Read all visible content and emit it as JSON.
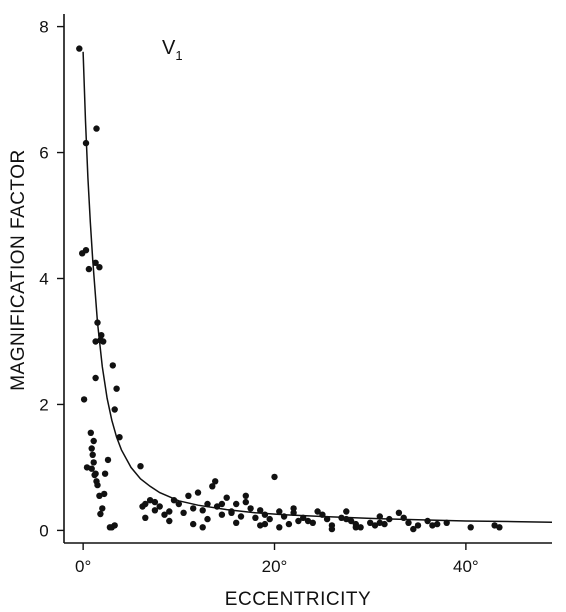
{
  "chart_data": {
    "type": "scatter",
    "panel_label": "V",
    "panel_label_sub": "1",
    "xlabel": "ECCENTRICITY",
    "ylabel": "MAGNIFICATION FACTOR",
    "xlim": [
      -2,
      49
    ],
    "ylim": [
      -0.2,
      8.2
    ],
    "x_ticks": [
      0,
      20,
      40
    ],
    "x_tick_labels": [
      "0°",
      "20°",
      "40°"
    ],
    "y_ticks": [
      0,
      2,
      4,
      6,
      8
    ],
    "y_tick_labels": [
      "0",
      "2",
      "4",
      "6",
      "8"
    ],
    "grid": false,
    "legend": "none",
    "colors": {
      "points": "#111111",
      "curve": "#111111",
      "background": "#ffffff"
    },
    "fit_curve": {
      "x": [
        0,
        0.25,
        0.5,
        0.75,
        1,
        1.25,
        1.5,
        2,
        2.5,
        3,
        3.5,
        4,
        5,
        6,
        7,
        8,
        10,
        12,
        15,
        18,
        21,
        25,
        30,
        35,
        40,
        45,
        50
      ],
      "y": [
        7.6,
        6.5,
        5.6,
        4.9,
        4.3,
        3.8,
        3.3,
        2.6,
        2.1,
        1.75,
        1.48,
        1.28,
        1.0,
        0.82,
        0.7,
        0.6,
        0.47,
        0.4,
        0.33,
        0.28,
        0.25,
        0.22,
        0.19,
        0.17,
        0.15,
        0.14,
        0.13
      ]
    },
    "points": {
      "x": [
        -0.4,
        0.3,
        -0.1,
        0.3,
        0.6,
        1.4,
        1.3,
        1.7,
        1.5,
        1.3,
        1.9,
        1.8,
        2.1,
        1.3,
        3.1,
        3.5,
        3.3,
        3.8,
        0.1,
        0.4,
        0.9,
        1.0,
        1.1,
        1.2,
        1.3,
        1.5,
        1.7,
        2.0,
        2.3,
        2.6,
        3.0,
        3.3,
        0.8,
        0.9,
        1.1,
        1.4,
        1.8,
        2.2,
        2.8,
        6.0,
        6.2,
        6.5,
        7.0,
        7.5,
        8.0,
        8.5,
        9.0,
        9.5,
        10.0,
        10.5,
        11.0,
        11.5,
        12.0,
        12.5,
        13.0,
        13.5,
        13.8,
        14.0,
        14.5,
        15.0,
        15.5,
        16.0,
        16.5,
        17.0,
        17.5,
        18.0,
        18.5,
        19.0,
        19.5,
        20.0,
        20.5,
        21.0,
        21.5,
        22.0,
        22.5,
        23.0,
        24.0,
        25.0,
        25.5,
        26.0,
        27.0,
        27.5,
        28.0,
        28.5,
        29.0,
        30.0,
        31.0,
        31.5,
        32.0,
        33.0,
        34.0,
        35.0,
        36.0,
        37.0,
        38.0,
        40.5,
        43.0,
        43.5,
        6.5,
        9.0,
        11.5,
        12.5,
        14.5,
        16.0,
        17.0,
        18.5,
        20.5,
        22.0,
        24.5,
        26.0,
        28.5,
        30.5,
        33.5,
        36.5,
        15.5,
        19.0,
        23.5,
        27.5,
        31.0,
        34.5,
        7.5,
        13.0
      ],
      "y": [
        7.65,
        6.15,
        4.4,
        4.45,
        4.15,
        6.38,
        4.25,
        4.18,
        3.3,
        3.0,
        3.1,
        3.02,
        3.0,
        2.42,
        2.62,
        2.25,
        1.92,
        1.48,
        2.08,
        1.0,
        1.3,
        1.2,
        1.42,
        0.88,
        0.9,
        0.72,
        0.55,
        0.35,
        0.9,
        1.12,
        0.05,
        0.08,
        1.55,
        0.98,
        1.08,
        0.78,
        0.26,
        0.58,
        0.05,
        1.02,
        0.38,
        0.42,
        0.48,
        0.32,
        0.38,
        0.25,
        0.3,
        0.48,
        0.42,
        0.28,
        0.55,
        0.35,
        0.6,
        0.32,
        0.42,
        0.7,
        0.78,
        0.38,
        0.25,
        0.52,
        0.3,
        0.42,
        0.22,
        0.45,
        0.35,
        0.2,
        0.32,
        0.25,
        0.18,
        0.85,
        0.3,
        0.22,
        0.1,
        0.28,
        0.15,
        0.2,
        0.12,
        0.25,
        0.18,
        0.08,
        0.2,
        0.3,
        0.15,
        0.1,
        0.05,
        0.12,
        0.22,
        0.1,
        0.18,
        0.28,
        0.12,
        0.08,
        0.15,
        0.1,
        0.12,
        0.05,
        0.08,
        0.05,
        0.2,
        0.15,
        0.1,
        0.05,
        0.42,
        0.12,
        0.55,
        0.08,
        0.05,
        0.35,
        0.3,
        0.02,
        0.05,
        0.08,
        0.2,
        0.08,
        0.28,
        0.1,
        0.15,
        0.18,
        0.12,
        0.02,
        0.45,
        0.18
      ]
    }
  }
}
